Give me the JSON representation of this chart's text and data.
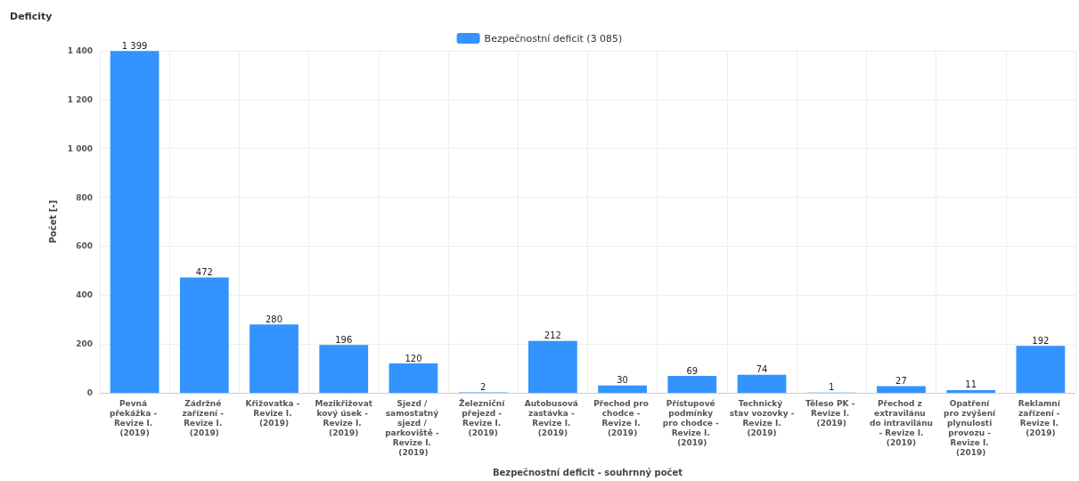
{
  "chart_data": {
    "type": "bar",
    "title": "Deficity",
    "xlabel": "Bezpečnostní deficit - souhrnný počet",
    "ylabel": "Počet [-]",
    "categories": [
      "Pevná překážka - Revize I. (2019)",
      "Zádržné zařízení - Revize I. (2019)",
      "Křižovatka - Revize I. (2019)",
      "Mezikřižovatkový úsek - Revize I. (2019)",
      "Sjezd / samostatný sjezd / parkoviště - Revize I. (2019)",
      "Železniční přejezd - Revize I. (2019)",
      "Autobusová zastávka - Revize I. (2019)",
      "Přechod pro chodce - Revize I. (2019)",
      "Přístupové podmínky pro chodce - Revize I. (2019)",
      "Technický stav vozovky - Revize I. (2019)",
      "Těleso PK - Revize I. (2019)",
      "Přechod z extravilánu do intravilánu - Revize I. (2019)",
      "Opatření pro zvýšení plynulosti provozu - Revize I. (2019)",
      "Reklamní zařízení - Revize I. (2019)"
    ],
    "series": [
      {
        "name": "Bezpečnostní deficit (3 085)",
        "color": "#3393ff",
        "values": [
          1399,
          472,
          280,
          196,
          120,
          2,
          212,
          30,
          69,
          74,
          1,
          27,
          11,
          192
        ],
        "value_labels": [
          "1 399",
          "472",
          "280",
          "196",
          "120",
          "2",
          "212",
          "30",
          "69",
          "74",
          "1",
          "27",
          "11",
          "192"
        ]
      }
    ],
    "ylim": [
      0,
      1400
    ],
    "yticks": [
      0,
      200,
      400,
      600,
      800,
      {
        "value": 1000,
        "label": "1 000"
      },
      {
        "value": 1200,
        "label": "1 200"
      },
      {
        "value": 1400,
        "label": "1 400"
      }
    ],
    "grid": true,
    "legend": "top"
  }
}
